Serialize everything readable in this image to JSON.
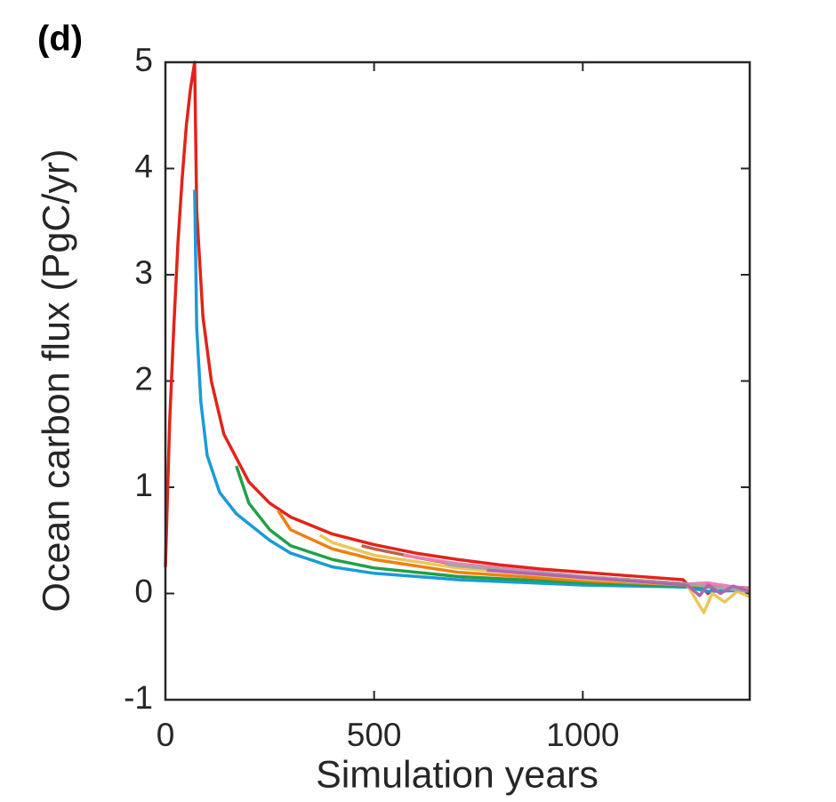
{
  "chart_data": {
    "type": "line",
    "annotation": "(d)",
    "x_label": "Simulation years",
    "y_label": "Ocean carbon flux  (PgC/yr)",
    "xlim": [
      0,
      1400
    ],
    "ylim": [
      -1,
      5
    ],
    "xticks": [
      0,
      500,
      1000
    ],
    "yticks": [
      -1,
      0,
      1,
      2,
      3,
      4,
      5
    ],
    "grid": false,
    "series": [
      {
        "color": "#e2231a",
        "x": [
          0,
          10,
          20,
          30,
          40,
          50,
          60,
          70,
          75,
          90,
          110,
          140,
          200,
          250,
          300,
          400,
          500,
          600,
          700,
          800,
          900,
          1000,
          1100,
          1240,
          1260,
          1280,
          1300,
          1320,
          1350,
          1400
        ],
        "values": [
          0.25,
          1.6,
          2.5,
          3.3,
          3.9,
          4.4,
          4.75,
          5.0,
          3.6,
          2.6,
          2.0,
          1.5,
          1.05,
          0.85,
          0.72,
          0.56,
          0.46,
          0.38,
          0.32,
          0.27,
          0.23,
          0.2,
          0.17,
          0.13,
          0.05,
          0.08,
          0.0,
          0.07,
          0.03,
          0.05
        ]
      },
      {
        "color": "#1a9bd7",
        "x": [
          70,
          75,
          85,
          100,
          130,
          170,
          250,
          300,
          400,
          500,
          700,
          1000,
          1250,
          1300,
          1400
        ],
        "values": [
          3.8,
          2.5,
          1.8,
          1.3,
          0.95,
          0.75,
          0.5,
          0.38,
          0.25,
          0.19,
          0.13,
          0.08,
          0.06,
          0.02,
          0.03
        ]
      },
      {
        "color": "#21a047",
        "x": [
          170,
          200,
          250,
          300,
          400,
          500,
          700,
          1000,
          1250,
          1400
        ],
        "values": [
          1.2,
          0.85,
          0.6,
          0.45,
          0.32,
          0.24,
          0.16,
          0.1,
          0.07,
          0.04
        ]
      },
      {
        "color": "#f07f0e",
        "x": [
          270,
          300,
          400,
          500,
          700,
          1000,
          1250,
          1400
        ],
        "values": [
          0.78,
          0.6,
          0.42,
          0.32,
          0.2,
          0.12,
          0.08,
          0.05
        ]
      },
      {
        "color": "#e8c85a",
        "x": [
          370,
          400,
          500,
          700,
          1000,
          1250,
          1270,
          1290,
          1310,
          1340,
          1370,
          1400
        ],
        "values": [
          0.55,
          0.48,
          0.36,
          0.24,
          0.14,
          0.08,
          -0.05,
          -0.18,
          0.0,
          -0.08,
          0.02,
          -0.03
        ]
      },
      {
        "color": "#b5654a",
        "x": [
          470,
          500,
          600,
          700,
          1000,
          1250,
          1400
        ],
        "values": [
          0.45,
          0.42,
          0.34,
          0.27,
          0.16,
          0.09,
          0.05
        ]
      },
      {
        "color": "#ee7fb4",
        "x": [
          570,
          700,
          1000,
          1250,
          1300,
          1400
        ],
        "values": [
          0.36,
          0.28,
          0.16,
          0.09,
          0.1,
          0.04
        ]
      },
      {
        "color": "#a5a5a5",
        "x": [
          670,
          700,
          1000,
          1250,
          1400
        ],
        "values": [
          0.28,
          0.26,
          0.16,
          0.09,
          0.02
        ]
      },
      {
        "color": "#b065b0",
        "x": [
          770,
          1000,
          1250,
          1280,
          1300,
          1330,
          1360,
          1400
        ],
        "values": [
          0.22,
          0.15,
          0.08,
          -0.02,
          0.08,
          0.0,
          0.07,
          0.02
        ]
      }
    ]
  }
}
